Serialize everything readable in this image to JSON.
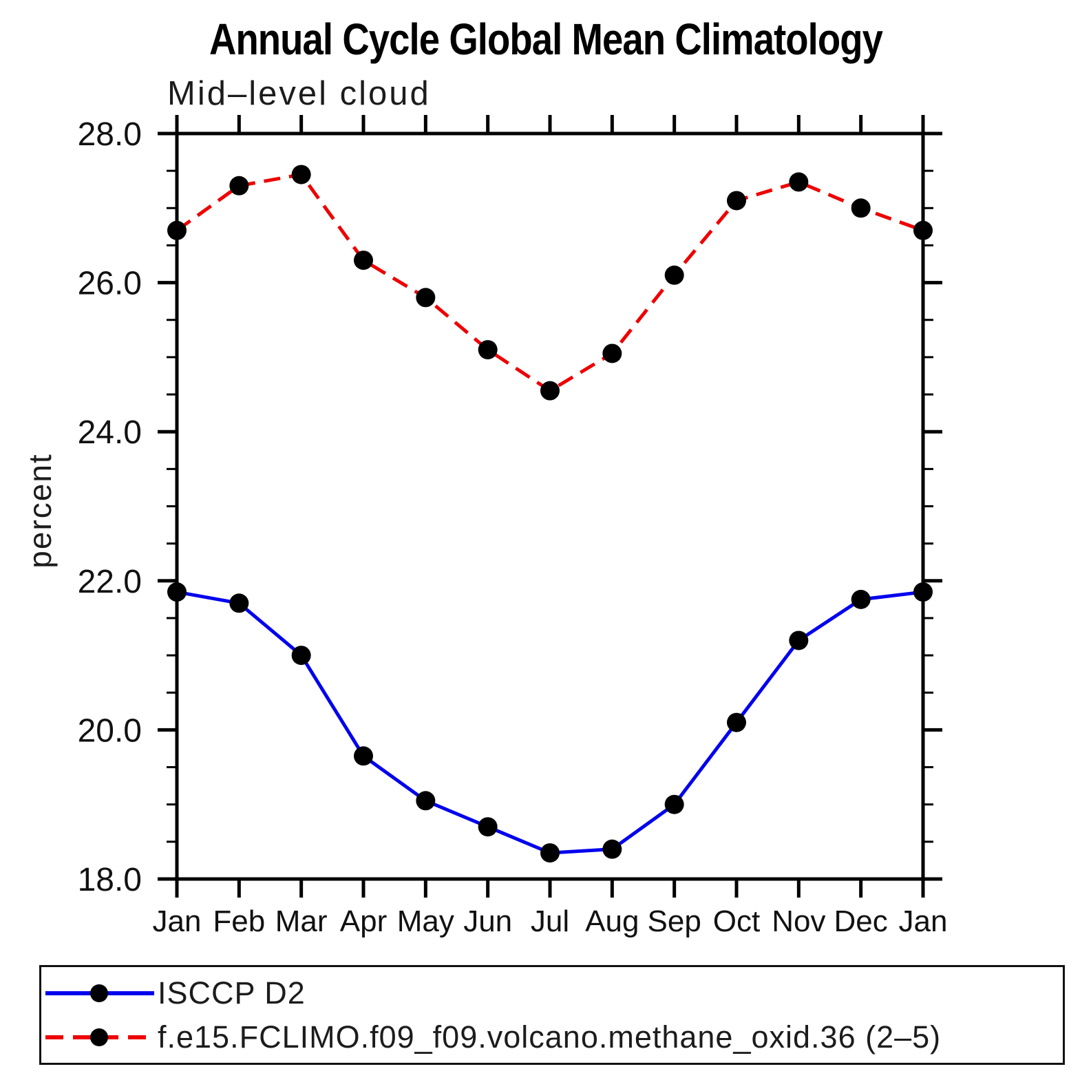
{
  "title": "Annual Cycle Global Mean Climatology",
  "subtitle": "Mid–level cloud",
  "y_axis": {
    "label": "percent",
    "tick_values": [
      18,
      20,
      22,
      24,
      26,
      28
    ],
    "tick_labels": [
      "18.0",
      "20.0",
      "22.0",
      "24.0",
      "26.0",
      "28.0"
    ],
    "minor_tick_step": 0.5,
    "range": [
      18,
      28
    ]
  },
  "x_axis": {
    "labels": [
      "Jan",
      "Feb",
      "Mar",
      "Apr",
      "May",
      "Jun",
      "Jul",
      "Aug",
      "Sep",
      "Oct",
      "Nov",
      "Dec",
      "Jan"
    ]
  },
  "chart_data": {
    "type": "line",
    "title": "Annual Cycle Global Mean Climatology",
    "subtitle": "Mid–level cloud",
    "ylabel": "percent",
    "xlabel": "",
    "categories": [
      "Jan",
      "Feb",
      "Mar",
      "Apr",
      "May",
      "Jun",
      "Jul",
      "Aug",
      "Sep",
      "Oct",
      "Nov",
      "Dec",
      "Jan"
    ],
    "ylim": [
      18.0,
      28.0
    ],
    "grid": false,
    "legend_position": "bottom-box",
    "marker": "filled-circle",
    "marker_color": "#000000",
    "series": [
      {
        "name": "ISCCP D2",
        "color": "#0000ee",
        "line_style": "solid",
        "values": [
          21.85,
          21.7,
          21.0,
          19.65,
          19.05,
          18.7,
          18.35,
          18.4,
          19.0,
          20.1,
          21.2,
          21.75,
          21.85
        ]
      },
      {
        "name": "f.e15.FCLIMO.f09_f09.volcano.methane_oxid.36 (2–5)",
        "color": "#ee0000",
        "line_style": "dashed",
        "dash_pattern": "24 13",
        "values": [
          26.7,
          27.3,
          27.45,
          26.3,
          25.8,
          25.1,
          24.55,
          25.05,
          26.1,
          27.1,
          27.35,
          27.0,
          26.7
        ]
      }
    ]
  }
}
